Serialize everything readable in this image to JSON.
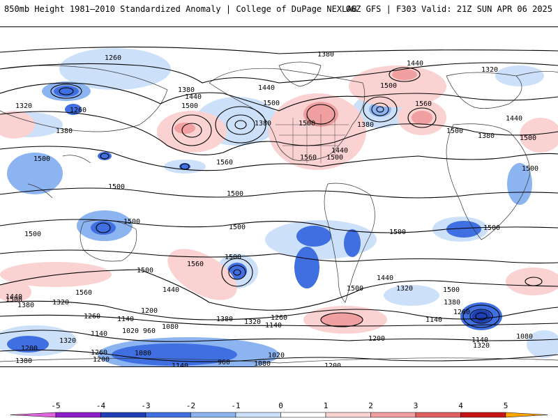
{
  "header": {
    "title": "850mb Height 1981–2010 Standardized Anomaly | College of DuPage NEXLAB",
    "run_info": "06Z GFS | F303 Valid: 21Z SUN APR 06 2025"
  },
  "colorbar": {
    "ticks": [
      "-5",
      "-4",
      "-3",
      "-2",
      "-1",
      "0",
      "1",
      "2",
      "3",
      "4",
      "5"
    ],
    "colors": [
      "#e066e0",
      "#8c1fc9",
      "#1f3fb5",
      "#3f6fe0",
      "#8cb4f0",
      "#cce0fa",
      "#ffffff",
      "#fad2d2",
      "#f0a0a0",
      "#e06060",
      "#c81414",
      "#f2c22a",
      "#ffa500"
    ]
  },
  "contour_labels": [
    "1260",
    "1380",
    "1320",
    "1380",
    "1440",
    "1500",
    "1440",
    "1320",
    "1260",
    "1380",
    "1500",
    "1440",
    "1500",
    "1380",
    "1500",
    "1560",
    "1380",
    "1560",
    "1440",
    "1500",
    "1560",
    "1500",
    "1380",
    "1500",
    "1440",
    "1500",
    "1500",
    "1500",
    "1500",
    "1500",
    "1500",
    "1500",
    "1500",
    "1500",
    "1500",
    "1560",
    "1500",
    "1440",
    "1560",
    "1500",
    "1440",
    "1320",
    "1500",
    "1380",
    "1500",
    "1440",
    "1380",
    "1320",
    "1200",
    "1260",
    "1380",
    "1320",
    "1260",
    "1140",
    "1140",
    "1020",
    "960",
    "1080",
    "1200",
    "1140",
    "1320",
    "1260",
    "1080",
    "1200",
    "1140",
    "960",
    "1020",
    "1080",
    "1200",
    "1380",
    "1260",
    "1140",
    "1140",
    "1320",
    "1080",
    "1200"
  ]
}
